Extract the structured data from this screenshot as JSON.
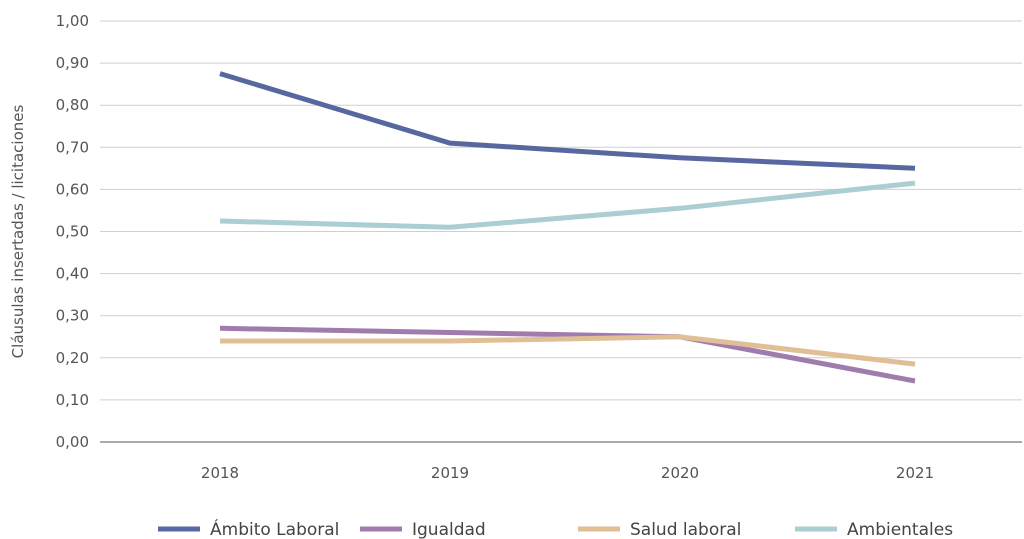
{
  "chart_data": {
    "type": "line",
    "categories": [
      "2018",
      "2019",
      "2020",
      "2021"
    ],
    "series": [
      {
        "name": "Ámbito Laboral",
        "color": "#56689f",
        "values": [
          0.875,
          0.71,
          0.675,
          0.65
        ]
      },
      {
        "name": "Igualdad",
        "color": "#a07cae",
        "values": [
          0.27,
          0.26,
          0.25,
          0.145
        ]
      },
      {
        "name": "Salud laboral",
        "color": "#e0bf97",
        "values": [
          0.24,
          0.24,
          0.25,
          0.185
        ]
      },
      {
        "name": "Ambientales",
        "color": "#abced3",
        "values": [
          0.525,
          0.51,
          0.555,
          0.615
        ]
      }
    ],
    "ylabel": "Cláusulas insertadas / licitaciones",
    "xlabel": "",
    "ylim": [
      0,
      1
    ],
    "yticks": [
      "0,00",
      "0,10",
      "0,20",
      "0,30",
      "0,40",
      "0,50",
      "0,60",
      "0,70",
      "0,80",
      "0,90",
      "1,00"
    ],
    "grid": true,
    "legend": "bottom"
  }
}
